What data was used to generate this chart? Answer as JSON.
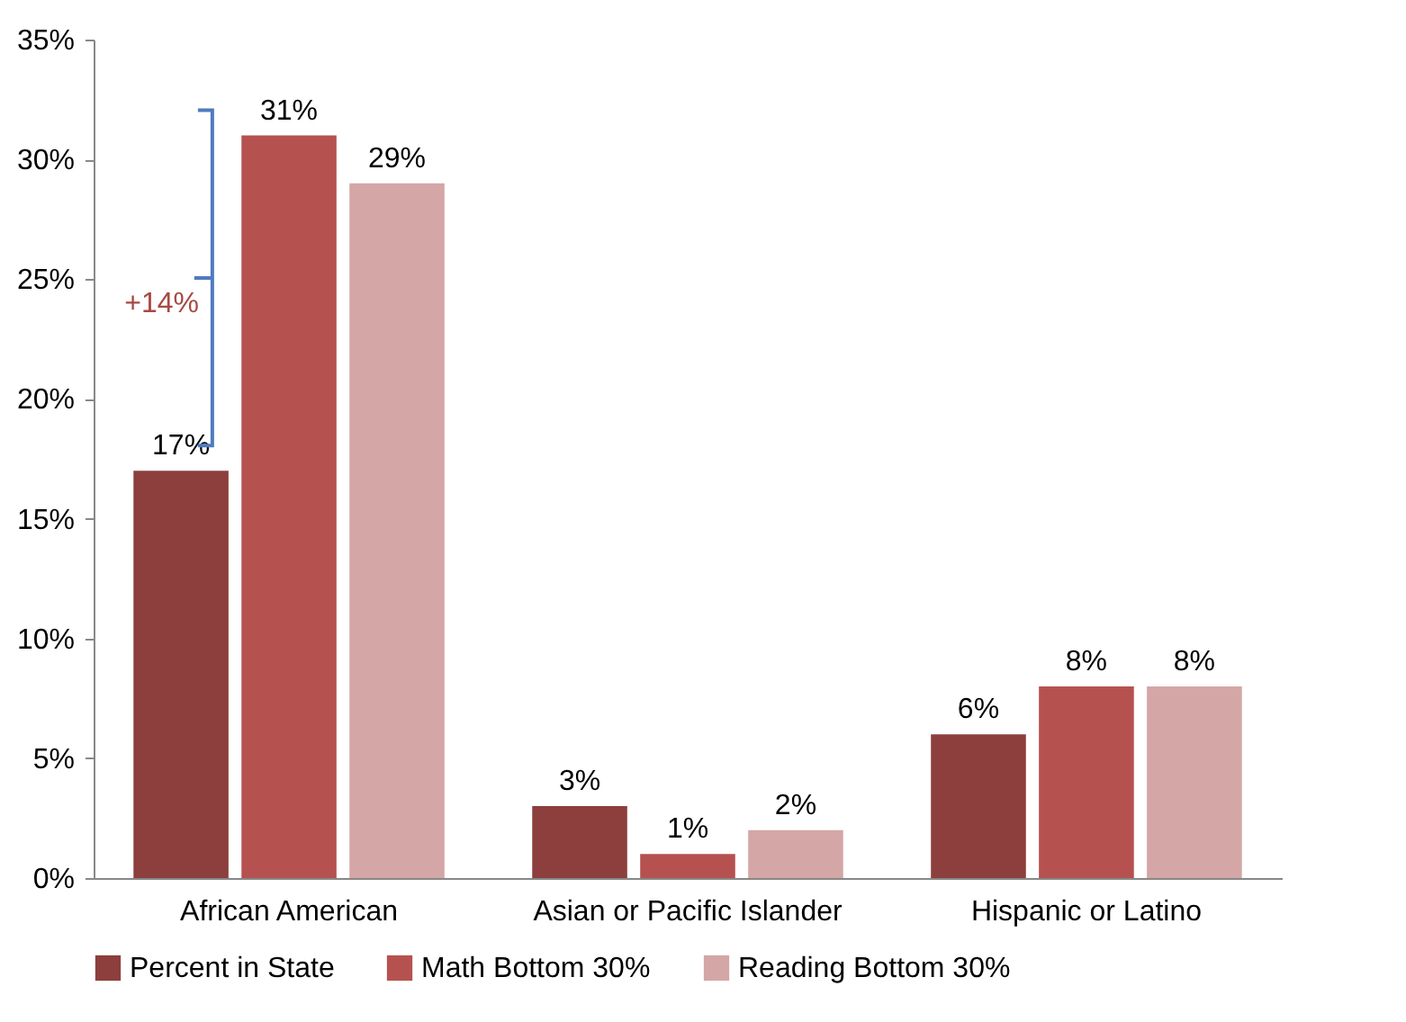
{
  "chart_data": {
    "type": "bar",
    "categories": [
      "African American",
      "Asian or Pacific Islander",
      "Hispanic or Latino"
    ],
    "series": [
      {
        "name": "Percent in State",
        "color": "#8c3f3d",
        "values": [
          17,
          3,
          6
        ],
        "value_labels": [
          "17%",
          "3%",
          "6%"
        ]
      },
      {
        "name": "Math Bottom 30%",
        "color": "#b5524f",
        "values": [
          31,
          1,
          8
        ],
        "value_labels": [
          "31%",
          "1%",
          "8%"
        ]
      },
      {
        "name": "Reading Bottom 30%",
        "color": "#d4a6a5",
        "values": [
          29,
          2,
          8
        ],
        "value_labels": [
          "29%",
          "2%",
          "8%"
        ]
      }
    ],
    "ylim": [
      0,
      35
    ],
    "yticks": [
      {
        "value": 0,
        "label": "0%"
      },
      {
        "value": 5,
        "label": "5%"
      },
      {
        "value": 10,
        "label": "10%"
      },
      {
        "value": 15,
        "label": "15%"
      },
      {
        "value": 20,
        "label": "20%"
      },
      {
        "value": 25,
        "label": "25%"
      },
      {
        "value": 30,
        "label": "30%"
      },
      {
        "value": 35,
        "label": "35%"
      }
    ],
    "annotations": [
      "+14%"
    ],
    "grid": false,
    "legend": "bottom"
  }
}
